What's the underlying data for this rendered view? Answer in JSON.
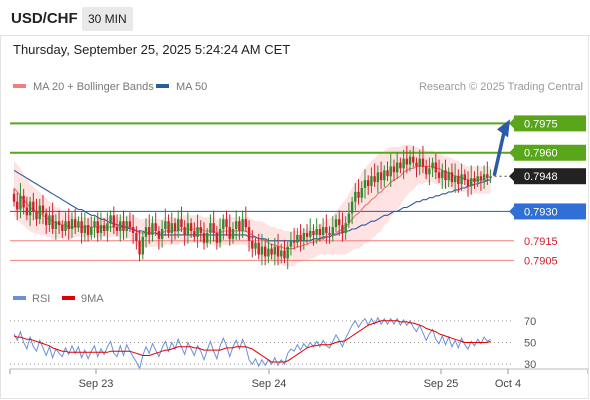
{
  "header": {
    "symbol": "USD/CHF",
    "interval": "30 MIN",
    "datetime": "Thursday, September 25, 2025 5:24:24 AM CET"
  },
  "colors": {
    "up_candle": "#2e8b2e",
    "down_candle": "#d0202a",
    "ma20": "#f07070",
    "bollinger_band": "#ffd9d9",
    "ma50": "#2c5aa0",
    "resistance": "#5aa61a",
    "support": "#2f6fd6",
    "target": "#f08080",
    "rsi": "#6b8fd8",
    "rsi_ma": "#e00000",
    "arrow": "#2b5ba8"
  },
  "chart_data": [
    {
      "type": "candlestick",
      "legend": [
        {
          "label": "MA 20 + Bollinger Bands",
          "color": "#f08080"
        },
        {
          "label": "MA 50",
          "color": "#2c5aa0"
        }
      ],
      "watermark": "Research © 2025 Trading Central",
      "x_ticks": [
        "Sep 23",
        "Sep 24",
        "Sep 25",
        "Oct 4"
      ],
      "ylim": [
        0.7897,
        0.7989
      ],
      "levels": [
        {
          "value": 0.7975,
          "label": "0.7975",
          "kind": "resistance"
        },
        {
          "value": 0.796,
          "label": "0.7960",
          "kind": "resistance"
        },
        {
          "value": 0.7948,
          "label": "0.7948",
          "kind": "last"
        },
        {
          "value": 0.793,
          "label": "0.7930",
          "kind": "support"
        },
        {
          "value": 0.7915,
          "label": "0.7915",
          "kind": "target"
        },
        {
          "value": 0.7905,
          "label": "0.7905",
          "kind": "target"
        }
      ],
      "close": [
        0.7935,
        0.7931,
        0.7938,
        0.7932,
        0.7928,
        0.7935,
        0.793,
        0.7926,
        0.7933,
        0.7929,
        0.7923,
        0.7928,
        0.7921,
        0.7925,
        0.7923,
        0.792,
        0.7925,
        0.7921,
        0.7926,
        0.7922,
        0.7925,
        0.7919,
        0.7923,
        0.7918,
        0.7922,
        0.7925,
        0.7919,
        0.7923,
        0.792,
        0.7924,
        0.7928,
        0.7922,
        0.792,
        0.7925,
        0.792,
        0.7925,
        0.7922,
        0.7919,
        0.7915,
        0.7908,
        0.7917,
        0.7922,
        0.7918,
        0.7924,
        0.792,
        0.7916,
        0.7921,
        0.7925,
        0.7919,
        0.7924,
        0.792,
        0.7926,
        0.7922,
        0.7918,
        0.7924,
        0.792,
        0.7917,
        0.7922,
        0.7919,
        0.7914,
        0.7919,
        0.7924,
        0.7919,
        0.7914,
        0.7921,
        0.7926,
        0.7922,
        0.7916,
        0.7921,
        0.7925,
        0.792,
        0.7926,
        0.7922,
        0.7915,
        0.7911,
        0.7914,
        0.7908,
        0.7912,
        0.7907,
        0.7911,
        0.7908,
        0.7912,
        0.7907,
        0.791,
        0.7906,
        0.7912,
        0.7915,
        0.7914,
        0.7918,
        0.7915,
        0.7919,
        0.7917,
        0.792,
        0.7918,
        0.7921,
        0.7918,
        0.7922,
        0.7919,
        0.7918,
        0.7922,
        0.7926,
        0.7923,
        0.7919,
        0.7924,
        0.7929,
        0.7935,
        0.794,
        0.7937,
        0.7942,
        0.7946,
        0.7943,
        0.7948,
        0.7945,
        0.795,
        0.7946,
        0.7951,
        0.7948,
        0.7953,
        0.795,
        0.7955,
        0.7952,
        0.7957,
        0.7954,
        0.7958,
        0.7955,
        0.7953,
        0.7957,
        0.7953,
        0.7949,
        0.7952,
        0.7955,
        0.795,
        0.7947,
        0.7951,
        0.7946,
        0.795,
        0.7945,
        0.7948,
        0.7944,
        0.7949,
        0.7946,
        0.7943,
        0.7947,
        0.7945,
        0.7948,
        0.7946,
        0.7949,
        0.7947,
        0.7948
      ],
      "ma20": [
        0.7942,
        0.794,
        0.7938,
        0.7936,
        0.7934,
        0.7932,
        0.7931,
        0.793,
        0.7929,
        0.7928,
        0.7927,
        0.7926,
        0.7925,
        0.7924,
        0.7924,
        0.7923,
        0.7923,
        0.7922,
        0.7922,
        0.7922,
        0.7922,
        0.7922,
        0.7922,
        0.7922,
        0.7922,
        0.7922,
        0.7922,
        0.7922,
        0.7922,
        0.7922,
        0.7922,
        0.7922,
        0.7922,
        0.7922,
        0.7922,
        0.7922,
        0.7922,
        0.7921,
        0.792,
        0.7919,
        0.7919,
        0.7919,
        0.7919,
        0.7919,
        0.7919,
        0.7919,
        0.7919,
        0.792,
        0.792,
        0.792,
        0.792,
        0.792,
        0.7921,
        0.7921,
        0.7921,
        0.7921,
        0.7921,
        0.7921,
        0.7921,
        0.792,
        0.792,
        0.792,
        0.792,
        0.7919,
        0.7919,
        0.792,
        0.792,
        0.792,
        0.792,
        0.792,
        0.792,
        0.792,
        0.792,
        0.7919,
        0.7918,
        0.7917,
        0.7916,
        0.7916,
        0.7915,
        0.7914,
        0.7913,
        0.7913,
        0.7912,
        0.7912,
        0.7911,
        0.7911,
        0.7911,
        0.7911,
        0.7912,
        0.7912,
        0.7913,
        0.7913,
        0.7914,
        0.7914,
        0.7915,
        0.7916,
        0.7916,
        0.7917,
        0.7917,
        0.7918,
        0.7919,
        0.792,
        0.7921,
        0.7922,
        0.7924,
        0.7926,
        0.7928,
        0.7929,
        0.7931,
        0.7933,
        0.7934,
        0.7936,
        0.7937,
        0.7939,
        0.794,
        0.7942,
        0.7943,
        0.7945,
        0.7946,
        0.7947,
        0.7948,
        0.795,
        0.7951,
        0.7952,
        0.7952,
        0.7953,
        0.7953,
        0.7953,
        0.7953,
        0.7953,
        0.7953,
        0.7952,
        0.7952,
        0.7951,
        0.795,
        0.795,
        0.7949,
        0.7948,
        0.7948,
        0.7947,
        0.7947,
        0.7946,
        0.7946,
        0.7946,
        0.7946,
        0.7946,
        0.7946,
        0.7946,
        0.7946
      ],
      "bollinger_width": [
        0.0014,
        0.0014,
        0.0014,
        0.0013,
        0.0013,
        0.0012,
        0.0012,
        0.0011,
        0.0011,
        0.001,
        0.001,
        0.0009,
        0.0009,
        0.0008,
        0.0008,
        0.0007,
        0.0007,
        0.0006,
        0.0006,
        0.0005,
        0.0005,
        0.0005,
        0.0005,
        0.0005,
        0.0005,
        0.0005,
        0.0005,
        0.0005,
        0.0005,
        0.0005,
        0.0005,
        0.0005,
        0.0005,
        0.0005,
        0.0006,
        0.0006,
        0.0006,
        0.0007,
        0.0007,
        0.0007,
        0.0007,
        0.0007,
        0.0007,
        0.0007,
        0.0007,
        0.0007,
        0.0007,
        0.0007,
        0.0007,
        0.0007,
        0.0007,
        0.0007,
        0.0007,
        0.0007,
        0.0007,
        0.0007,
        0.0007,
        0.0007,
        0.0007,
        0.0007,
        0.0007,
        0.0007,
        0.0007,
        0.0007,
        0.0007,
        0.0007,
        0.0007,
        0.0007,
        0.0007,
        0.0007,
        0.0007,
        0.0007,
        0.0007,
        0.0008,
        0.0008,
        0.0008,
        0.0009,
        0.0009,
        0.0009,
        0.0009,
        0.0009,
        0.0009,
        0.0009,
        0.0009,
        0.0009,
        0.0009,
        0.0009,
        0.0009,
        0.0008,
        0.0008,
        0.0008,
        0.0008,
        0.0008,
        0.0008,
        0.0008,
        0.0008,
        0.0008,
        0.0009,
        0.0009,
        0.001,
        0.0011,
        0.0012,
        0.0013,
        0.0014,
        0.0015,
        0.0016,
        0.0017,
        0.0018,
        0.0019,
        0.0019,
        0.002,
        0.002,
        0.002,
        0.002,
        0.002,
        0.0019,
        0.0019,
        0.0018,
        0.0017,
        0.0016,
        0.0015,
        0.0014,
        0.0013,
        0.0012,
        0.0011,
        0.001,
        0.0009,
        0.0009,
        0.0008,
        0.0008,
        0.0008,
        0.0008,
        0.0008,
        0.0008,
        0.0008,
        0.0008,
        0.0008,
        0.0008,
        0.0008,
        0.0007,
        0.0007,
        0.0007,
        0.0007,
        0.0007,
        0.0007,
        0.0007,
        0.0007,
        0.0007,
        0.0007
      ],
      "ma50": [
        0.7951,
        0.795,
        0.7949,
        0.7948,
        0.7947,
        0.7946,
        0.7945,
        0.7944,
        0.7943,
        0.7942,
        0.7941,
        0.794,
        0.7939,
        0.7938,
        0.7937,
        0.7936,
        0.7935,
        0.7934,
        0.7933,
        0.7932,
        0.7931,
        0.7931,
        0.793,
        0.7929,
        0.7928,
        0.7928,
        0.7927,
        0.7926,
        0.7926,
        0.7925,
        0.7924,
        0.7924,
        0.7923,
        0.7923,
        0.7922,
        0.7922,
        0.7921,
        0.7921,
        0.792,
        0.792,
        0.792,
        0.7919,
        0.7919,
        0.7919,
        0.7919,
        0.7918,
        0.7918,
        0.7918,
        0.7918,
        0.7918,
        0.7918,
        0.7918,
        0.7918,
        0.7918,
        0.7918,
        0.7918,
        0.7918,
        0.7918,
        0.7918,
        0.7918,
        0.7918,
        0.7918,
        0.7918,
        0.7918,
        0.7918,
        0.7918,
        0.7918,
        0.7918,
        0.7918,
        0.7918,
        0.7918,
        0.7918,
        0.7918,
        0.7917,
        0.7917,
        0.7917,
        0.7916,
        0.7916,
        0.7916,
        0.7915,
        0.7915,
        0.7915,
        0.7915,
        0.7915,
        0.7915,
        0.7915,
        0.7915,
        0.7915,
        0.7915,
        0.7915,
        0.7915,
        0.7915,
        0.7915,
        0.7916,
        0.7916,
        0.7916,
        0.7917,
        0.7917,
        0.7917,
        0.7918,
        0.7918,
        0.7919,
        0.7919,
        0.792,
        0.792,
        0.7921,
        0.7921,
        0.7922,
        0.7923,
        0.7923,
        0.7924,
        0.7925,
        0.7925,
        0.7926,
        0.7927,
        0.7928,
        0.7928,
        0.7929,
        0.793,
        0.793,
        0.7931,
        0.7932,
        0.7932,
        0.7933,
        0.7934,
        0.7935,
        0.7935,
        0.7936,
        0.7936,
        0.7937,
        0.7937,
        0.7938,
        0.7938,
        0.7939,
        0.7939,
        0.794,
        0.794,
        0.7941,
        0.7941,
        0.7942,
        0.7942,
        0.7943,
        0.7943,
        0.7944,
        0.7944,
        0.7945,
        0.7945,
        0.7946,
        0.7946
      ],
      "forecast_arrow": {
        "from": 0.7949,
        "to": 0.7975
      }
    },
    {
      "type": "line",
      "legend": [
        {
          "label": "RSI",
          "color": "#6b8fd8"
        },
        {
          "label": "9MA",
          "color": "#e00000"
        }
      ],
      "ylim": [
        20,
        80
      ],
      "y_ticks": [
        "70",
        "50",
        "30"
      ],
      "guide_levels": [
        70,
        50,
        30
      ],
      "rsi": [
        58,
        52,
        60,
        50,
        44,
        55,
        46,
        42,
        52,
        45,
        38,
        46,
        36,
        44,
        40,
        37,
        45,
        39,
        47,
        40,
        46,
        36,
        43,
        35,
        42,
        47,
        37,
        44,
        39,
        46,
        51,
        40,
        37,
        47,
        38,
        48,
        42,
        37,
        32,
        26,
        38,
        46,
        40,
        49,
        43,
        37,
        45,
        51,
        42,
        50,
        44,
        53,
        46,
        39,
        50,
        44,
        38,
        47,
        42,
        34,
        43,
        51,
        42,
        35,
        47,
        54,
        47,
        37,
        46,
        52,
        44,
        53,
        46,
        34,
        30,
        35,
        28,
        34,
        29,
        34,
        30,
        36,
        29,
        34,
        30,
        40,
        44,
        42,
        48,
        43,
        49,
        45,
        50,
        46,
        51,
        46,
        52,
        47,
        45,
        51,
        57,
        52,
        46,
        54,
        60,
        66,
        70,
        64,
        69,
        72,
        66,
        72,
        67,
        73,
        67,
        72,
        67,
        72,
        67,
        72,
        66,
        71,
        66,
        70,
        64,
        60,
        66,
        59,
        52,
        58,
        62,
        53,
        49,
        56,
        48,
        55,
        46,
        52,
        45,
        54,
        48,
        44,
        51,
        47,
        53,
        49,
        55,
        51,
        53
      ],
      "ma9": [
        56,
        55,
        55,
        54,
        53,
        53,
        52,
        51,
        50,
        49,
        48,
        47,
        45,
        44,
        43,
        42,
        42,
        41,
        41,
        41,
        41,
        41,
        41,
        41,
        41,
        41,
        41,
        41,
        41,
        41,
        42,
        42,
        42,
        42,
        42,
        42,
        42,
        41,
        40,
        39,
        38,
        38,
        38,
        39,
        40,
        41,
        42,
        43,
        43,
        44,
        45,
        46,
        46,
        46,
        46,
        46,
        45,
        45,
        44,
        43,
        43,
        43,
        43,
        43,
        43,
        44,
        45,
        45,
        45,
        46,
        46,
        46,
        46,
        45,
        44,
        42,
        40,
        38,
        36,
        34,
        32,
        32,
        32,
        32,
        32,
        33,
        35,
        37,
        39,
        41,
        43,
        45,
        46,
        47,
        47,
        48,
        48,
        48,
        48,
        49,
        50,
        51,
        51,
        52,
        54,
        56,
        58,
        60,
        62,
        64,
        66,
        67,
        68,
        69,
        70,
        70,
        70,
        70,
        70,
        70,
        69,
        69,
        69,
        68,
        68,
        67,
        66,
        65,
        63,
        62,
        61,
        60,
        58,
        57,
        56,
        55,
        54,
        53,
        52,
        51,
        50,
        50,
        50,
        50,
        50,
        50,
        50,
        50,
        51
      ]
    }
  ]
}
